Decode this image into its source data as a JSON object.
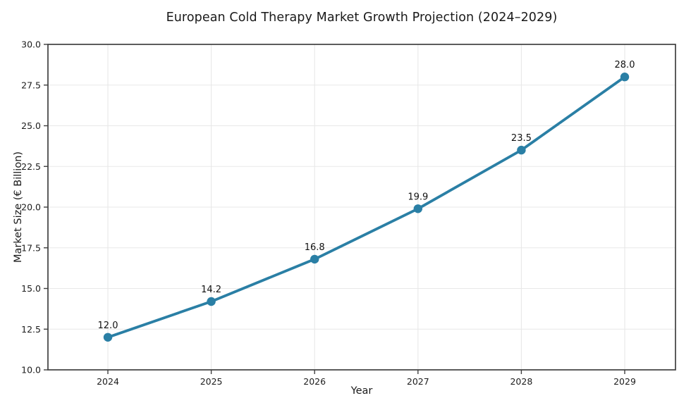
{
  "chart_data": {
    "type": "line",
    "title": "European Cold Therapy Market Growth Projection (2024–2029)",
    "xlabel": "Year",
    "ylabel": "Market Size (€ Billion)",
    "categories": [
      "2024",
      "2025",
      "2026",
      "2027",
      "2028",
      "2029"
    ],
    "series": [
      {
        "name": "Market Size",
        "values": [
          12.0,
          14.2,
          16.8,
          19.9,
          23.5,
          28.0
        ],
        "point_labels": [
          "12.0",
          "14.2",
          "16.8",
          "19.9",
          "23.5",
          "28.0"
        ]
      }
    ],
    "ylim": [
      10.0,
      30.0
    ],
    "yticks": [
      10.0,
      12.5,
      15.0,
      17.5,
      20.0,
      22.5,
      25.0,
      27.5,
      30.0
    ],
    "ytick_labels": [
      "10.0",
      "12.5",
      "15.0",
      "17.5",
      "20.0",
      "22.5",
      "25.0",
      "27.5",
      "30.0"
    ],
    "grid": true,
    "legend": "none",
    "colors": {
      "line": "#2a7fa5",
      "marker": "#2a7fa5",
      "grid": "#e8e8e8",
      "spine": "#3f3f3f",
      "tick_text": "#1c1c1c",
      "label_text": "#111111",
      "background": "#ffffff"
    }
  }
}
